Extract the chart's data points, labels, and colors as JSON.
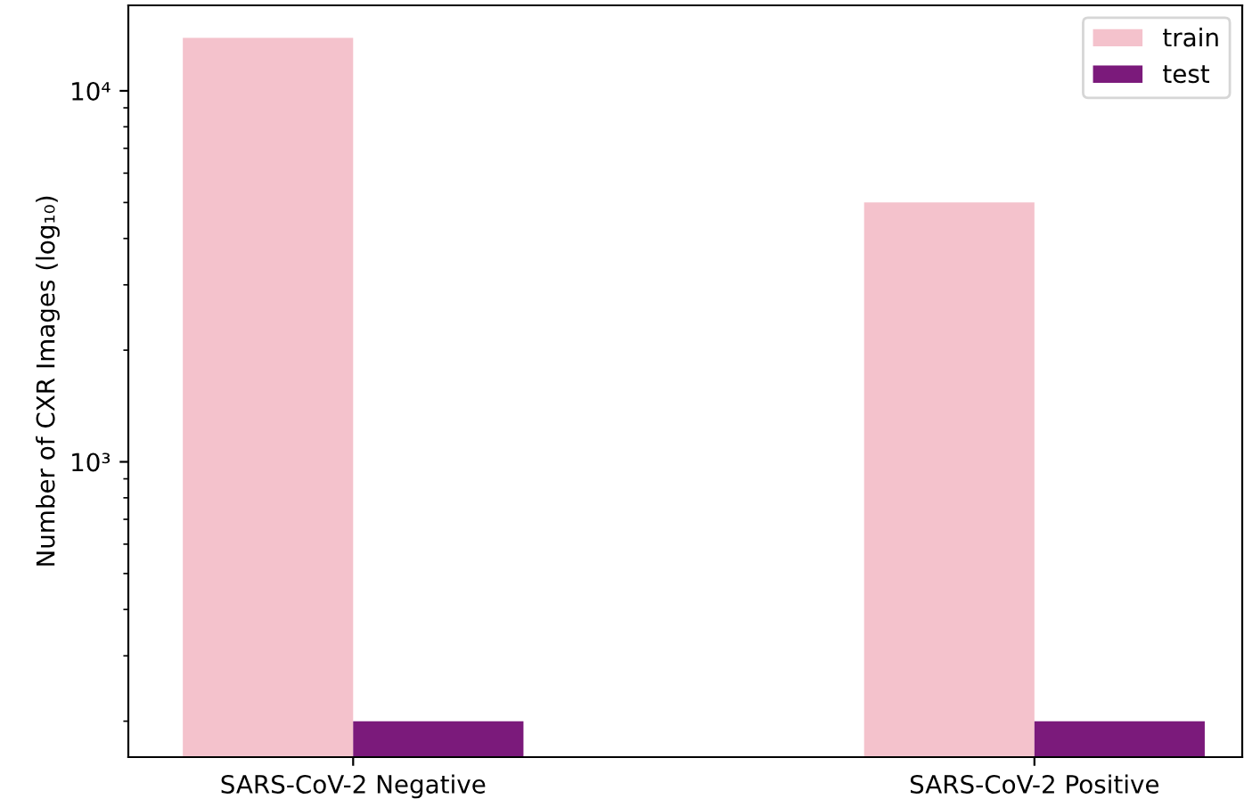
{
  "chart_data": {
    "type": "bar",
    "ylabel": "Number of CXR Images (log₁₀)",
    "categories": [
      "SARS-CoV-2 Negative",
      "SARS-CoV-2 Positive"
    ],
    "series": [
      {
        "name": "train",
        "color": "#f4c2cc",
        "values": [
          13900,
          5000
        ]
      },
      {
        "name": "test",
        "color": "#7b1a7b",
        "values": [
          200,
          200
        ]
      }
    ],
    "log": "y",
    "ylim": [
      160,
      17000
    ],
    "yticks": [
      {
        "value": 1000,
        "label": "10³"
      },
      {
        "value": 10000,
        "label": "10⁴"
      }
    ],
    "legend": "top right",
    "grid": false
  }
}
